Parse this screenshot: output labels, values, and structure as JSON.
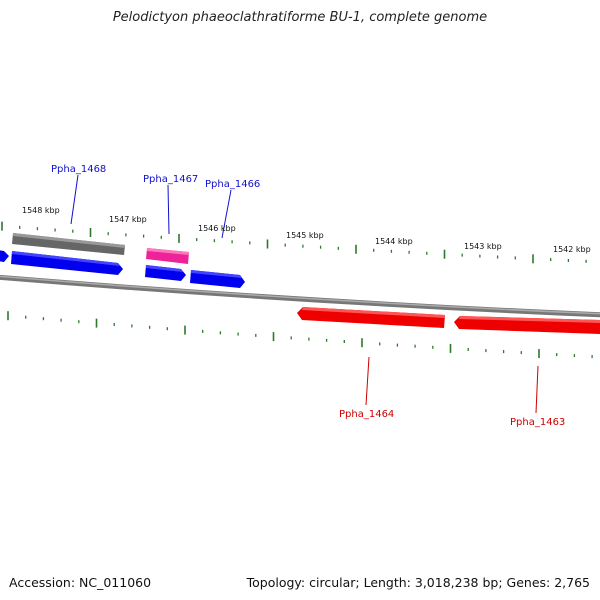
{
  "title": "Pelodictyon phaeoclathratiforme BU-1, complete genome",
  "accession": "Accession: NC_011060",
  "summary": "Topology: circular; Length: 3,018,238 bp; Genes: 2,765",
  "kbp_labels": [
    "1548 kbp",
    "1547 kbp",
    "1546 kbp",
    "1545 kbp",
    "1544 kbp",
    "1543 kbp",
    "1542 kbp"
  ],
  "genes": [
    {
      "label": "Ppha_1468",
      "strand": "plus",
      "color": "#1010cc"
    },
    {
      "label": "Ppha_1467",
      "strand": "plus",
      "color": "#1010cc"
    },
    {
      "label": "Ppha_1466",
      "strand": "plus",
      "color": "#1010cc"
    },
    {
      "label": "Ppha_1464",
      "strand": "minus",
      "color": "#cc0000"
    },
    {
      "label": "Ppha_1463",
      "strand": "minus",
      "color": "#cc0000"
    }
  ],
  "colors": {
    "backbone": "#888888",
    "tick": "#2a7a2a",
    "plus_gene": "#0000ee",
    "minus_gene": "#ee0000",
    "rna": "#ee2299",
    "pseudo": "#666666"
  }
}
